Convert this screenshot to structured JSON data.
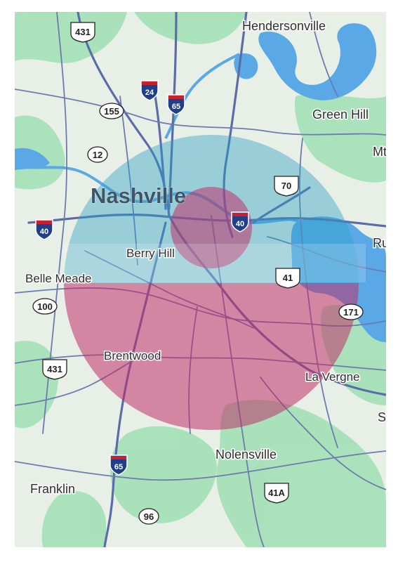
{
  "map": {
    "city_label": "Nashville",
    "places": [
      {
        "id": "hendersonville",
        "name": "Hendersonville"
      },
      {
        "id": "green-hill",
        "name": "Green Hill"
      },
      {
        "id": "mt",
        "name": "Mt"
      },
      {
        "id": "ru",
        "name": "Ru"
      },
      {
        "id": "berry-hill",
        "name": "Berry Hill"
      },
      {
        "id": "belle-meade",
        "name": "Belle Meade"
      },
      {
        "id": "brentwood",
        "name": "Brentwood"
      },
      {
        "id": "la-vergne",
        "name": "La Vergne"
      },
      {
        "id": "s",
        "name": "S"
      },
      {
        "id": "nolensville",
        "name": "Nolensville"
      },
      {
        "id": "franklin",
        "name": "Franklin"
      }
    ],
    "shields": [
      {
        "id": "i24",
        "type": "interstate",
        "number": "24"
      },
      {
        "id": "i65-north",
        "type": "interstate",
        "number": "65"
      },
      {
        "id": "i40-east",
        "type": "interstate",
        "number": "40"
      },
      {
        "id": "i40-west",
        "type": "interstate",
        "number": "40"
      },
      {
        "id": "i65-south",
        "type": "interstate",
        "number": "65"
      },
      {
        "id": "us431-north",
        "type": "us",
        "number": "431"
      },
      {
        "id": "us431-south",
        "type": "us",
        "number": "431"
      },
      {
        "id": "us70",
        "type": "us",
        "number": "70"
      },
      {
        "id": "us41",
        "type": "us",
        "number": "41"
      },
      {
        "id": "us41a",
        "type": "us",
        "number": "41A"
      },
      {
        "id": "sr155",
        "type": "state",
        "number": "155"
      },
      {
        "id": "sr12",
        "type": "state",
        "number": "12"
      },
      {
        "id": "sr100",
        "type": "state",
        "number": "100"
      },
      {
        "id": "sr171",
        "type": "state",
        "number": "171"
      },
      {
        "id": "sr96",
        "type": "state",
        "number": "96"
      }
    ],
    "overlay_colors": {
      "outer_upper": "#2aa0c8",
      "outer_lower": "#c0306a",
      "inner": "#c0306a",
      "water": "#5aa9e6",
      "park": "#8fdca8"
    }
  }
}
